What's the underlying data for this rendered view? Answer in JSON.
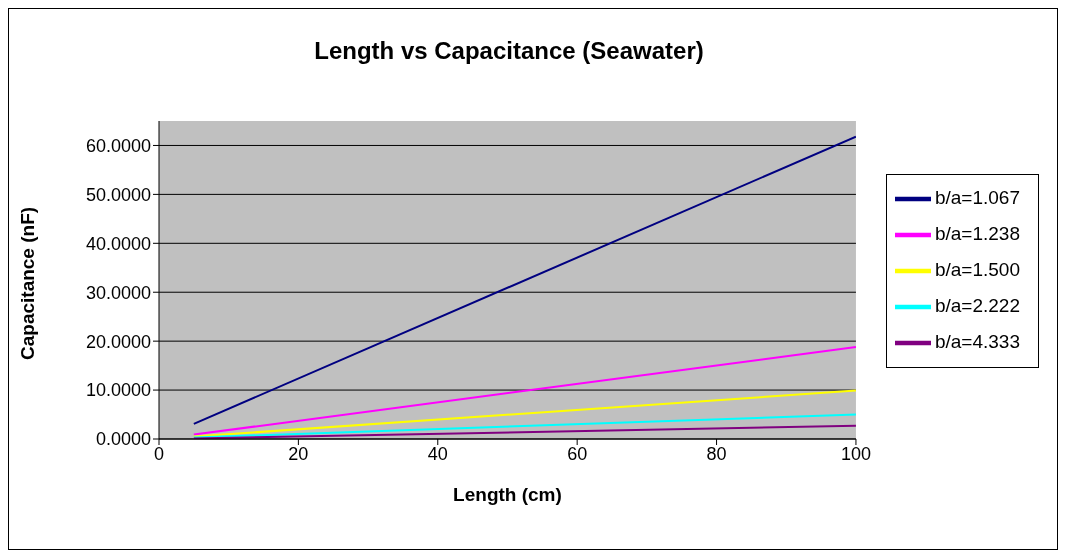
{
  "chart_data": {
    "type": "line",
    "title": "Length vs Capacitance (Seawater)",
    "xlabel": "Length (cm)",
    "ylabel": "Capacitance (nF)",
    "x": [
      5,
      100
    ],
    "series": [
      {
        "name": "b/a=1.067",
        "color": "#000080",
        "values": [
          3.1,
          61.8
        ]
      },
      {
        "name": "b/a=1.238",
        "color": "#ff00ff",
        "values": [
          0.9,
          18.8
        ]
      },
      {
        "name": "b/a=1.500",
        "color": "#ffff00",
        "values": [
          0.5,
          9.9
        ]
      },
      {
        "name": "b/a=2.222",
        "color": "#00ffff",
        "values": [
          0.3,
          5.0
        ]
      },
      {
        "name": "b/a=4.333",
        "color": "#800080",
        "values": [
          0.1,
          2.7
        ]
      }
    ],
    "xlim": [
      0,
      100
    ],
    "xticks": [
      0,
      20,
      40,
      60,
      80,
      100
    ],
    "ylim": [
      0,
      65
    ],
    "yticks": [
      {
        "value": 0,
        "label": "0.0000"
      },
      {
        "value": 10,
        "label": "10.0000"
      },
      {
        "value": 20,
        "label": "20.0000"
      },
      {
        "value": 30,
        "label": "30.0000"
      },
      {
        "value": 40,
        "label": "40.0000"
      },
      {
        "value": 50,
        "label": "50.0000"
      },
      {
        "value": 60,
        "label": "60.0000"
      }
    ],
    "grid": "y",
    "legend": "right",
    "marker": "none",
    "line_style": "solid"
  }
}
